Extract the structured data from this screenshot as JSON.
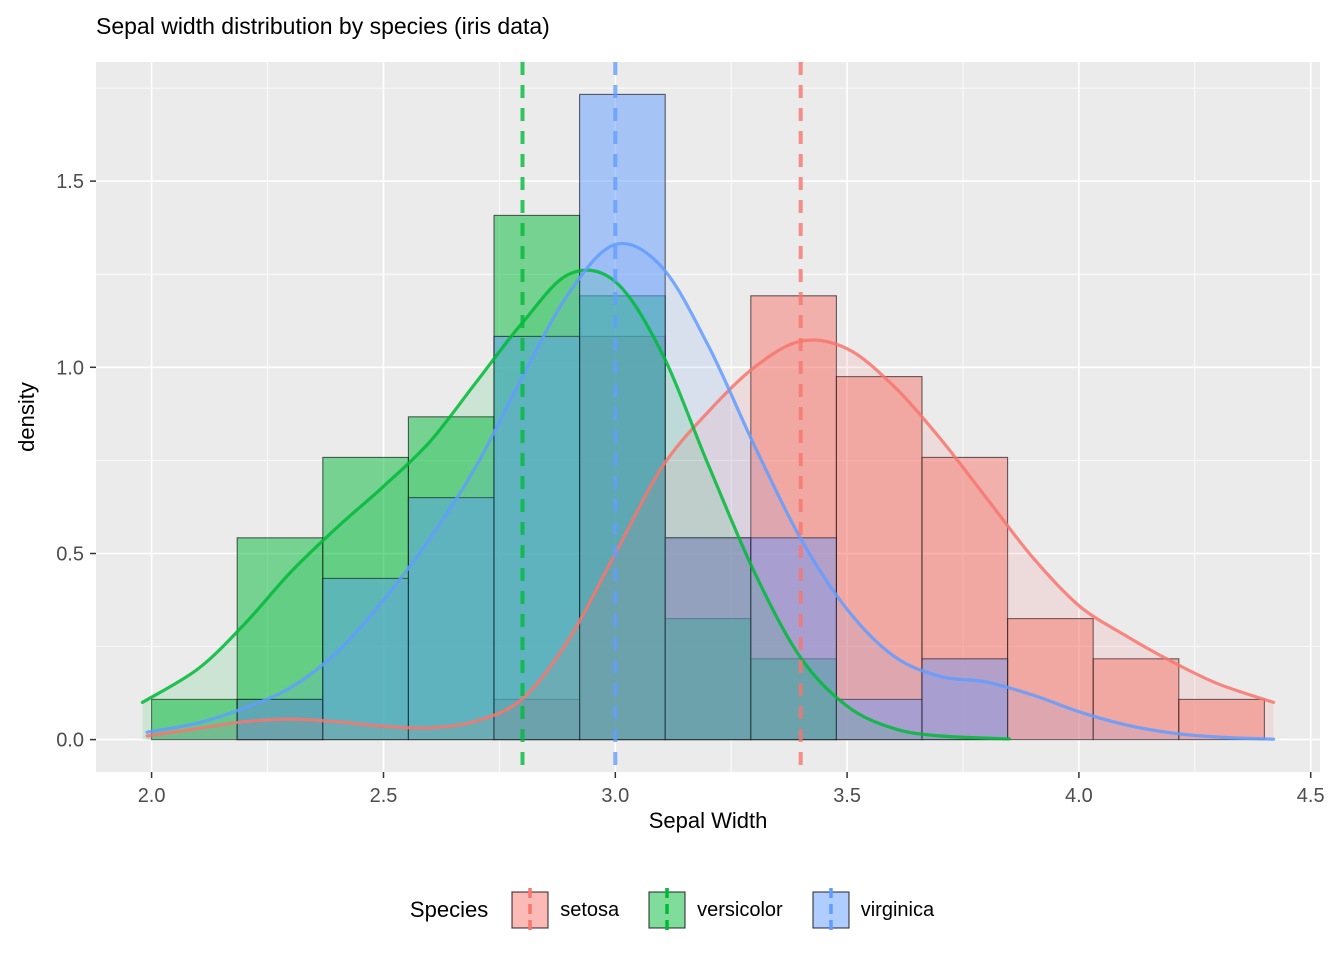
{
  "chart_data": {
    "type": "histogram",
    "title": "Sepal width distribution by species (iris data)",
    "xlabel": "Sepal Width",
    "ylabel": "density",
    "legend_title": "Species",
    "legend_position": "bottom",
    "panel_bg": "#EBEBEB",
    "grid_color": "#FFFFFF",
    "tick_color": "#333333",
    "tick_label_color": "#4D4D4D",
    "xlim": [
      1.88,
      4.52
    ],
    "ylim": [
      -0.087,
      1.82
    ],
    "x_tick_values": [
      2.0,
      2.5,
      3.0,
      3.5,
      4.0,
      4.5
    ],
    "x_tick_labels": [
      "2.0",
      "2.5",
      "3.0",
      "3.5",
      "4.0",
      "4.5"
    ],
    "y_tick_values": [
      0.0,
      0.5,
      1.0,
      1.5
    ],
    "y_tick_labels": [
      "0.0",
      "0.5",
      "1.0",
      "1.5"
    ],
    "x_minor": [
      2.25,
      2.75,
      3.25,
      3.75,
      4.25
    ],
    "y_minor": [
      0.25,
      0.75,
      1.25,
      1.75
    ],
    "bin_width": 0.1846,
    "series": [
      {
        "name": "setosa",
        "color": "#F8766D",
        "vline_x": 3.4,
        "bins": [
          [
            2.1846,
            2.3692,
            0.108
          ],
          [
            2.7385,
            2.9231,
            0.108
          ],
          [
            2.9231,
            3.1077,
            1.083
          ],
          [
            3.1077,
            3.2923,
            0.542
          ],
          [
            3.2923,
            3.4769,
            1.192
          ],
          [
            3.4769,
            3.6615,
            0.975
          ],
          [
            3.6615,
            3.8462,
            0.758
          ],
          [
            3.8462,
            4.0308,
            0.325
          ],
          [
            4.0308,
            4.2154,
            0.217
          ],
          [
            4.2154,
            4.4,
            0.108
          ]
        ],
        "curve": [
          [
            1.99,
            0.01
          ],
          [
            2.1,
            0.03
          ],
          [
            2.2,
            0.048
          ],
          [
            2.3,
            0.055
          ],
          [
            2.4,
            0.048
          ],
          [
            2.5,
            0.036
          ],
          [
            2.6,
            0.032
          ],
          [
            2.7,
            0.05
          ],
          [
            2.8,
            0.11
          ],
          [
            2.9,
            0.27
          ],
          [
            3.0,
            0.5
          ],
          [
            3.1,
            0.73
          ],
          [
            3.2,
            0.88
          ],
          [
            3.3,
            1.0
          ],
          [
            3.4,
            1.07
          ],
          [
            3.5,
            1.05
          ],
          [
            3.6,
            0.95
          ],
          [
            3.7,
            0.81
          ],
          [
            3.8,
            0.65
          ],
          [
            3.9,
            0.49
          ],
          [
            4.0,
            0.36
          ],
          [
            4.1,
            0.28
          ],
          [
            4.2,
            0.21
          ],
          [
            4.3,
            0.15
          ],
          [
            4.42,
            0.1
          ]
        ]
      },
      {
        "name": "versicolor",
        "color": "#00BA38",
        "vline_x": 2.8,
        "bins": [
          [
            2.0,
            2.1846,
            0.108
          ],
          [
            2.1846,
            2.3692,
            0.542
          ],
          [
            2.3692,
            2.5538,
            0.758
          ],
          [
            2.5538,
            2.7385,
            0.867
          ],
          [
            2.7385,
            2.9231,
            1.408
          ],
          [
            2.9231,
            3.1077,
            1.192
          ],
          [
            3.1077,
            3.2923,
            0.325
          ],
          [
            3.2923,
            3.4769,
            0.217
          ]
        ],
        "curve": [
          [
            1.98,
            0.1
          ],
          [
            2.1,
            0.19
          ],
          [
            2.2,
            0.31
          ],
          [
            2.3,
            0.45
          ],
          [
            2.4,
            0.57
          ],
          [
            2.5,
            0.68
          ],
          [
            2.6,
            0.8
          ],
          [
            2.7,
            0.96
          ],
          [
            2.8,
            1.12
          ],
          [
            2.9,
            1.25
          ],
          [
            3.0,
            1.23
          ],
          [
            3.1,
            1.04
          ],
          [
            3.2,
            0.74
          ],
          [
            3.3,
            0.45
          ],
          [
            3.4,
            0.22
          ],
          [
            3.5,
            0.09
          ],
          [
            3.6,
            0.03
          ],
          [
            3.7,
            0.01
          ],
          [
            3.85,
            0.002
          ]
        ]
      },
      {
        "name": "virginica",
        "color": "#619CFF",
        "vline_x": 3.0,
        "bins": [
          [
            2.1846,
            2.3692,
            0.108
          ],
          [
            2.3692,
            2.5538,
            0.433
          ],
          [
            2.5538,
            2.7385,
            0.65
          ],
          [
            2.7385,
            2.9231,
            1.083
          ],
          [
            2.9231,
            3.1077,
            1.733
          ],
          [
            3.1077,
            3.2923,
            0.542
          ],
          [
            3.2923,
            3.4769,
            0.542
          ],
          [
            3.4769,
            3.6615,
            0.108
          ],
          [
            3.6615,
            3.8462,
            0.217
          ]
        ],
        "curve": [
          [
            1.99,
            0.02
          ],
          [
            2.1,
            0.045
          ],
          [
            2.2,
            0.085
          ],
          [
            2.3,
            0.14
          ],
          [
            2.4,
            0.235
          ],
          [
            2.5,
            0.375
          ],
          [
            2.6,
            0.54
          ],
          [
            2.7,
            0.735
          ],
          [
            2.8,
            0.975
          ],
          [
            2.9,
            1.2
          ],
          [
            3.0,
            1.33
          ],
          [
            3.1,
            1.27
          ],
          [
            3.2,
            1.06
          ],
          [
            3.3,
            0.79
          ],
          [
            3.4,
            0.54
          ],
          [
            3.5,
            0.35
          ],
          [
            3.6,
            0.225
          ],
          [
            3.7,
            0.17
          ],
          [
            3.8,
            0.155
          ],
          [
            3.9,
            0.12
          ],
          [
            4.0,
            0.075
          ],
          [
            4.1,
            0.04
          ],
          [
            4.2,
            0.018
          ],
          [
            4.3,
            0.007
          ],
          [
            4.42,
            0.001
          ]
        ]
      }
    ]
  }
}
